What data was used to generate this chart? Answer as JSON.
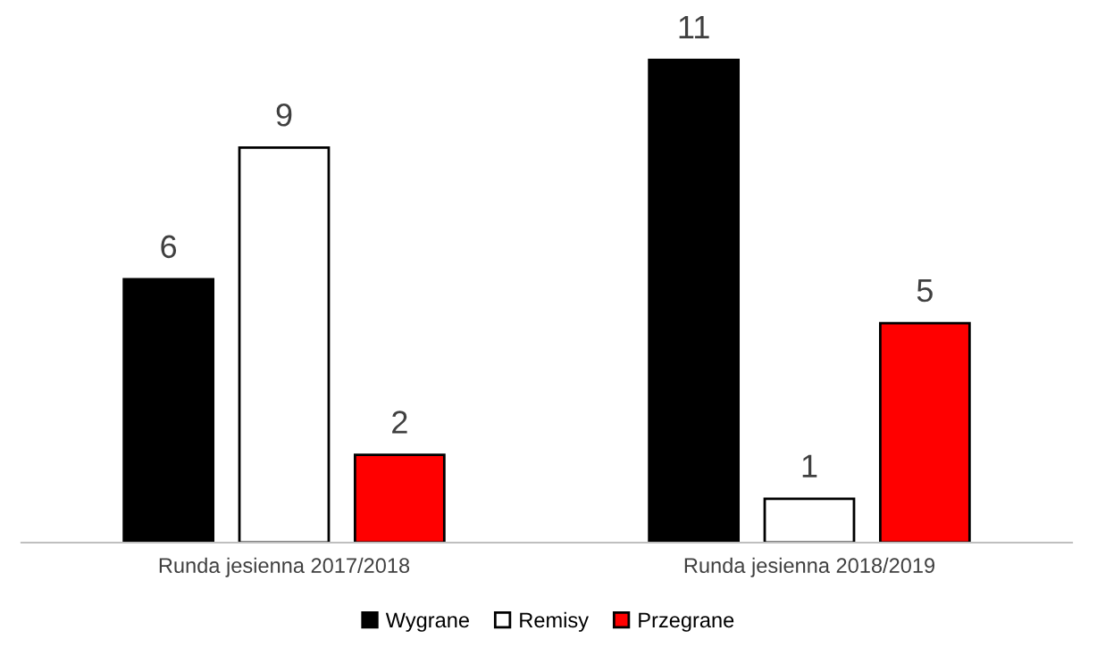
{
  "chart_data": {
    "type": "bar",
    "categories": [
      "Runda jesienna 2017/2018",
      "Runda jesienna 2018/2019"
    ],
    "series": [
      {
        "name": "Wygrane",
        "color": "#000000",
        "values": [
          6,
          11
        ]
      },
      {
        "name": "Remisy",
        "color": "#ffffff",
        "values": [
          9,
          1
        ]
      },
      {
        "name": "Przegrane",
        "color": "#ff0000",
        "values": [
          2,
          5
        ]
      }
    ],
    "data_labels": true,
    "legend": "bottom"
  }
}
